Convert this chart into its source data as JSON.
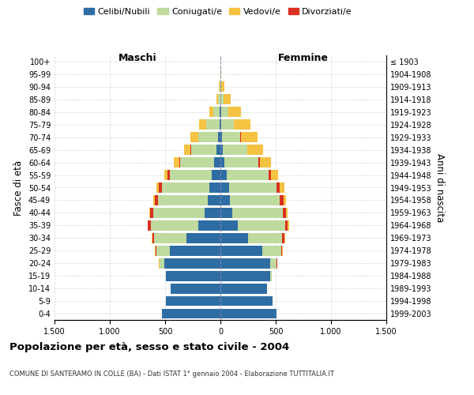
{
  "age_groups": [
    "0-4",
    "5-9",
    "10-14",
    "15-19",
    "20-24",
    "25-29",
    "30-34",
    "35-39",
    "40-44",
    "45-49",
    "50-54",
    "55-59",
    "60-64",
    "65-69",
    "70-74",
    "75-79",
    "80-84",
    "85-89",
    "90-94",
    "95-99",
    "100+"
  ],
  "birth_years": [
    "1999-2003",
    "1994-1998",
    "1989-1993",
    "1984-1988",
    "1979-1983",
    "1974-1978",
    "1969-1973",
    "1964-1968",
    "1959-1963",
    "1954-1958",
    "1949-1953",
    "1944-1948",
    "1939-1943",
    "1934-1938",
    "1929-1933",
    "1924-1928",
    "1919-1923",
    "1914-1918",
    "1909-1913",
    "1904-1908",
    "≤ 1903"
  ],
  "males": {
    "celibi": [
      530,
      490,
      450,
      490,
      510,
      460,
      310,
      200,
      140,
      115,
      100,
      80,
      55,
      35,
      20,
      10,
      5,
      2,
      0,
      0,
      0
    ],
    "coniugati": [
      0,
      0,
      2,
      5,
      40,
      120,
      290,
      430,
      470,
      450,
      430,
      380,
      310,
      230,
      180,
      120,
      60,
      20,
      8,
      2,
      0
    ],
    "vedovi": [
      0,
      0,
      0,
      0,
      5,
      5,
      5,
      5,
      5,
      10,
      20,
      30,
      45,
      60,
      70,
      60,
      35,
      15,
      5,
      0,
      0
    ],
    "divorziati": [
      0,
      0,
      0,
      0,
      2,
      5,
      15,
      25,
      25,
      30,
      30,
      20,
      8,
      5,
      2,
      0,
      0,
      0,
      0,
      0,
      0
    ]
  },
  "females": {
    "nubili": [
      510,
      470,
      420,
      450,
      450,
      380,
      250,
      155,
      105,
      85,
      75,
      55,
      35,
      20,
      12,
      8,
      4,
      2,
      0,
      0,
      0
    ],
    "coniugate": [
      0,
      0,
      3,
      15,
      60,
      170,
      310,
      430,
      460,
      450,
      430,
      380,
      310,
      220,
      170,
      110,
      65,
      25,
      10,
      2,
      0
    ],
    "vedove": [
      0,
      0,
      0,
      0,
      5,
      5,
      5,
      8,
      12,
      20,
      40,
      65,
      100,
      140,
      155,
      155,
      120,
      65,
      25,
      5,
      2
    ],
    "divorziate": [
      0,
      0,
      0,
      0,
      2,
      8,
      18,
      25,
      30,
      35,
      30,
      20,
      10,
      5,
      2,
      0,
      0,
      0,
      0,
      0,
      0
    ]
  },
  "colors": {
    "celibi": "#2E6DA4",
    "coniugati": "#BFDA9E",
    "vedovi": "#F5C242",
    "divorziati": "#D93020"
  },
  "xlim": 1500,
  "title": "Popolazione per età, sesso e stato civile - 2004",
  "subtitle": "COMUNE DI SANTERAMO IN COLLE (BA) - Dati ISTAT 1° gennaio 2004 - Elaborazione TUTTITALIA.IT",
  "ylabel": "Fasce di età",
  "y2label": "Anni di nascita",
  "legend_labels": [
    "Celibi/Nubili",
    "Coniugati/e",
    "Vedovi/e",
    "Divorziati/e"
  ]
}
